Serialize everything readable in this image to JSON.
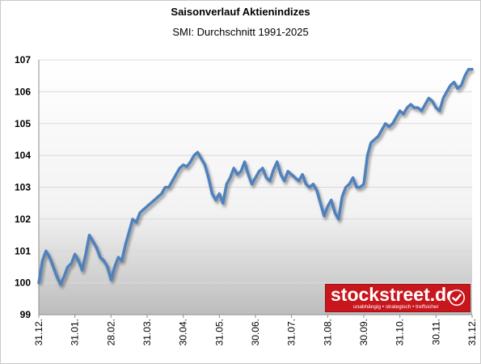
{
  "chart_data": {
    "type": "line",
    "title": "Saisonverlauf Aktienindizes",
    "subtitle": "SMI: Durchschnitt 1991-2025",
    "xlabel": "",
    "ylabel": "",
    "ylim": [
      99,
      107
    ],
    "yticks": [
      "99",
      "100",
      "101",
      "102",
      "103",
      "104",
      "105",
      "106",
      "107"
    ],
    "xticks": [
      "31.12.",
      "31.01.",
      "28.02.",
      "31.03.",
      "30.04.",
      "31.05.",
      "30.06.",
      "31.07.",
      "31.08.",
      "30.09.",
      "31.10.",
      "30.11.",
      "31.12."
    ],
    "grid": true,
    "legend": "none",
    "series": [
      {
        "color": "#4f81bd",
        "x": [
          0,
          0.1,
          0.2,
          0.3,
          0.4,
          0.5,
          0.6,
          0.7,
          0.8,
          0.9,
          1.0,
          1.1,
          1.2,
          1.3,
          1.4,
          1.5,
          1.6,
          1.7,
          1.8,
          1.9,
          2.0,
          2.1,
          2.2,
          2.3,
          2.4,
          2.5,
          2.6,
          2.7,
          2.8,
          2.9,
          3.0,
          3.1,
          3.2,
          3.3,
          3.4,
          3.5,
          3.6,
          3.7,
          3.8,
          3.9,
          4.0,
          4.1,
          4.2,
          4.3,
          4.4,
          4.5,
          4.6,
          4.7,
          4.8,
          4.9,
          5.0,
          5.1,
          5.2,
          5.3,
          5.4,
          5.5,
          5.6,
          5.7,
          5.8,
          5.9,
          6.0,
          6.1,
          6.2,
          6.3,
          6.4,
          6.5,
          6.6,
          6.7,
          6.8,
          6.9,
          7.0,
          7.1,
          7.2,
          7.3,
          7.4,
          7.5,
          7.6,
          7.7,
          7.8,
          7.9,
          8.0,
          8.1,
          8.2,
          8.3,
          8.4,
          8.5,
          8.6,
          8.7,
          8.8,
          8.9,
          9.0,
          9.1,
          9.2,
          9.3,
          9.4,
          9.5,
          9.6,
          9.7,
          9.8,
          9.9,
          10.0,
          10.1,
          10.2,
          10.3,
          10.4,
          10.5,
          10.6,
          10.7,
          10.8,
          10.9,
          11.0,
          11.1,
          11.2,
          11.3,
          11.4,
          11.5,
          11.6,
          11.7,
          11.8,
          11.9,
          12.0
        ],
        "values": [
          100.0,
          100.7,
          101.0,
          100.8,
          100.5,
          100.2,
          99.95,
          100.2,
          100.5,
          100.6,
          100.9,
          100.7,
          100.4,
          100.9,
          101.5,
          101.3,
          101.1,
          100.8,
          100.7,
          100.5,
          100.1,
          100.5,
          100.8,
          100.7,
          101.2,
          101.6,
          102.0,
          101.9,
          102.2,
          102.3,
          102.4,
          102.5,
          102.6,
          102.7,
          102.8,
          103.0,
          103.0,
          103.2,
          103.4,
          103.6,
          103.7,
          103.65,
          103.8,
          104.0,
          104.1,
          103.9,
          103.7,
          103.3,
          102.8,
          102.6,
          102.8,
          102.5,
          103.1,
          103.3,
          103.6,
          103.4,
          103.5,
          103.8,
          103.4,
          103.1,
          103.3,
          103.5,
          103.6,
          103.3,
          103.2,
          103.55,
          103.8,
          103.4,
          103.2,
          103.5,
          103.4,
          103.3,
          103.2,
          103.4,
          103.1,
          103.0,
          103.1,
          102.9,
          102.5,
          102.1,
          102.4,
          102.6,
          102.2,
          102.0,
          102.7,
          103.0,
          103.1,
          103.3,
          103.0,
          103.0,
          103.1,
          104.0,
          104.4,
          104.5,
          104.6,
          104.8,
          105.0,
          104.9,
          105.0,
          105.2,
          105.4,
          105.3,
          105.5,
          105.6,
          105.5,
          105.5,
          105.4,
          105.6,
          105.8,
          105.7,
          105.5,
          105.4,
          105.8,
          106.0,
          106.2,
          106.3,
          106.1,
          106.2,
          106.5,
          106.7,
          106.7
        ]
      }
    ]
  },
  "logo": {
    "text": "stockstreet.de",
    "tagline": "unabhängig • strategisch • treffsicher"
  }
}
